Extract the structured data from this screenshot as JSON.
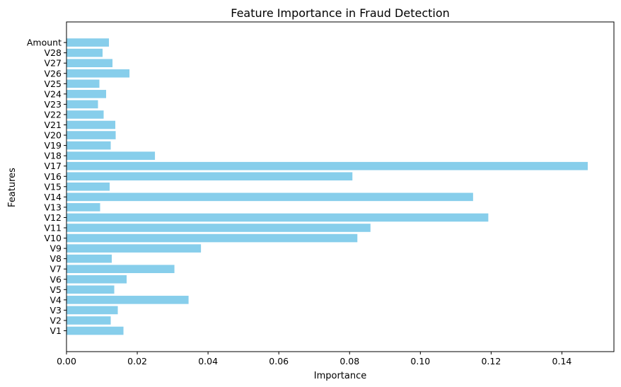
{
  "chart_data": {
    "type": "bar",
    "orientation": "horizontal",
    "title": "Feature Importance in Fraud Detection",
    "xlabel": "Importance",
    "ylabel": "Features",
    "categories": [
      "V1",
      "V2",
      "V3",
      "V4",
      "V5",
      "V6",
      "V7",
      "V8",
      "V9",
      "V10",
      "V11",
      "V12",
      "V13",
      "V14",
      "V15",
      "V16",
      "V17",
      "V18",
      "V19",
      "V20",
      "V21",
      "V22",
      "V23",
      "V24",
      "V25",
      "V26",
      "V27",
      "V28",
      "Amount"
    ],
    "values": [
      0.0161,
      0.0125,
      0.0145,
      0.0345,
      0.0135,
      0.017,
      0.0305,
      0.0128,
      0.038,
      0.0822,
      0.0859,
      0.1192,
      0.0095,
      0.1149,
      0.0122,
      0.0808,
      0.1473,
      0.025,
      0.0125,
      0.0139,
      0.0138,
      0.0105,
      0.0089,
      0.0112,
      0.0093,
      0.0178,
      0.013,
      0.0102,
      0.012
    ],
    "xlim": [
      0,
      0.1547
    ],
    "xticks": [
      "0.00",
      "0.02",
      "0.04",
      "0.06",
      "0.08",
      "0.10",
      "0.12",
      "0.14"
    ],
    "grid": false,
    "legend": false,
    "bar_color": "#87CEEB"
  }
}
